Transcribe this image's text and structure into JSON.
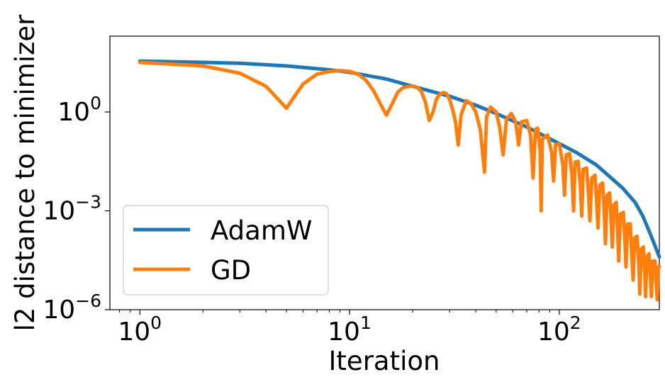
{
  "chart_data": {
    "type": "line",
    "title": "",
    "xlabel": "Iteration",
    "ylabel": "l2 distance to minimizer",
    "xscale": "log",
    "yscale": "log",
    "xlim": [
      0.72,
      300
    ],
    "ylim": [
      1e-06,
      200
    ],
    "xticks": [
      {
        "value": 1,
        "base": "10",
        "exp": "0"
      },
      {
        "value": 10,
        "base": "10",
        "exp": "1"
      },
      {
        "value": 100,
        "base": "10",
        "exp": "2"
      }
    ],
    "yticks": [
      {
        "value": 1,
        "base": "10",
        "exp": "0"
      },
      {
        "value": 0.001,
        "base": "10",
        "exp": "−3"
      },
      {
        "value": 1e-06,
        "base": "10",
        "exp": "−6"
      }
    ],
    "grid": false,
    "legend_position": "lower-left",
    "series": [
      {
        "name": "AdamW",
        "color": "#1f77b4",
        "points": [
          [
            1,
            35
          ],
          [
            2,
            32
          ],
          [
            3,
            30
          ],
          [
            5,
            25
          ],
          [
            8,
            19
          ],
          [
            10,
            16
          ],
          [
            15,
            10
          ],
          [
            20,
            6
          ],
          [
            30,
            3
          ],
          [
            40,
            1.6
          ],
          [
            50,
            0.9
          ],
          [
            70,
            0.35
          ],
          [
            100,
            0.11
          ],
          [
            120,
            0.06
          ],
          [
            150,
            0.025
          ],
          [
            180,
            0.009
          ],
          [
            200,
            0.005
          ],
          [
            230,
            0.0018
          ],
          [
            250,
            0.0007
          ],
          [
            270,
            0.00022
          ],
          [
            290,
            7e-05
          ],
          [
            300,
            4e-05
          ]
        ]
      },
      {
        "name": "GD",
        "color": "#ff7f0e",
        "points": [
          [
            1,
            32
          ],
          [
            2,
            25
          ],
          [
            3,
            15
          ],
          [
            4,
            6
          ],
          [
            5,
            1.3
          ],
          [
            6,
            7
          ],
          [
            7,
            14
          ],
          [
            8,
            17
          ],
          [
            9,
            18
          ],
          [
            10,
            17
          ],
          [
            11,
            14
          ],
          [
            12,
            9
          ],
          [
            13,
            4.5
          ],
          [
            14,
            1.8
          ],
          [
            15,
            0.8
          ],
          [
            16,
            1.8
          ],
          [
            17,
            4
          ],
          [
            18,
            5.5
          ],
          [
            20,
            6.2
          ],
          [
            21,
            5.6
          ],
          [
            22,
            4.2
          ],
          [
            23,
            2
          ],
          [
            24,
            0.55
          ],
          [
            25,
            1
          ],
          [
            26,
            2.5
          ],
          [
            27,
            3.5
          ],
          [
            28,
            3.9
          ],
          [
            29,
            3.6
          ],
          [
            30,
            2.4
          ],
          [
            31,
            1.2
          ],
          [
            32,
            0.5
          ],
          [
            33,
            0.1
          ],
          [
            34,
            0.8
          ],
          [
            36,
            2.2
          ],
          [
            38,
            1.8
          ],
          [
            40,
            1
          ],
          [
            42,
            0.3
          ],
          [
            44,
            0.015
          ],
          [
            45,
            0.7
          ],
          [
            47,
            1.4
          ],
          [
            50,
            1
          ],
          [
            52,
            0.35
          ],
          [
            54,
            0.05
          ],
          [
            56,
            0.6
          ],
          [
            59,
            0.9
          ],
          [
            62,
            0.5
          ],
          [
            64,
            0.1
          ],
          [
            66,
            0.5
          ],
          [
            70,
            0.55
          ],
          [
            73,
            0.2
          ],
          [
            75,
            0.01
          ],
          [
            77,
            0.3
          ],
          [
            79,
            0.32
          ],
          [
            81,
            0.07
          ],
          [
            82,
            0.001
          ],
          [
            83,
            0.15
          ],
          [
            88,
            0.2
          ],
          [
            92,
            0.06
          ],
          [
            94,
            0.008
          ],
          [
            96,
            0.1
          ],
          [
            100,
            0.11
          ],
          [
            104,
            0.025
          ],
          [
            106,
            0.003
          ],
          [
            108,
            0.05
          ],
          [
            112,
            0.055
          ],
          [
            115,
            0.012
          ],
          [
            117,
            0.001
          ],
          [
            119,
            0.03
          ],
          [
            123,
            0.032
          ],
          [
            126,
            0.006
          ],
          [
            128,
            0.0007
          ],
          [
            130,
            0.018
          ],
          [
            135,
            0.02
          ],
          [
            138,
            0.003
          ],
          [
            140,
            0.0005
          ],
          [
            143,
            0.01
          ],
          [
            148,
            0.012
          ],
          [
            151,
            0.0015
          ],
          [
            153,
            0.0003
          ],
          [
            156,
            0.006
          ],
          [
            161,
            0.007
          ],
          [
            164,
            0.0008
          ],
          [
            166,
            0.0001
          ],
          [
            169,
            0.003
          ],
          [
            174,
            0.0035
          ],
          [
            177,
            0.0004
          ],
          [
            179,
            8e-05
          ],
          [
            182,
            0.0015
          ],
          [
            187,
            0.0018
          ],
          [
            190,
            0.0002
          ],
          [
            192,
            3e-05
          ],
          [
            196,
            0.0008
          ],
          [
            202,
            0.0009
          ],
          [
            206,
            0.0001
          ],
          [
            208,
            2e-05
          ],
          [
            212,
            0.0004
          ],
          [
            218,
            0.0004
          ],
          [
            222,
            4e-05
          ],
          [
            225,
            8e-06
          ],
          [
            229,
            0.00015
          ],
          [
            235,
            0.00017
          ],
          [
            240,
            2e-05
          ],
          [
            242,
            3e-06
          ],
          [
            246,
            7e-05
          ],
          [
            252,
            8e-05
          ],
          [
            256,
            1e-05
          ],
          [
            258,
            2.5e-06
          ],
          [
            262,
            4e-05
          ],
          [
            268,
            5e-05
          ],
          [
            272,
            8e-06
          ],
          [
            275,
            2.5e-06
          ],
          [
            280,
            3e-05
          ],
          [
            286,
            3e-05
          ],
          [
            290,
            6e-06
          ],
          [
            293,
            2e-06
          ],
          [
            297,
            2e-05
          ],
          [
            300,
            2e-05
          ]
        ]
      }
    ]
  }
}
